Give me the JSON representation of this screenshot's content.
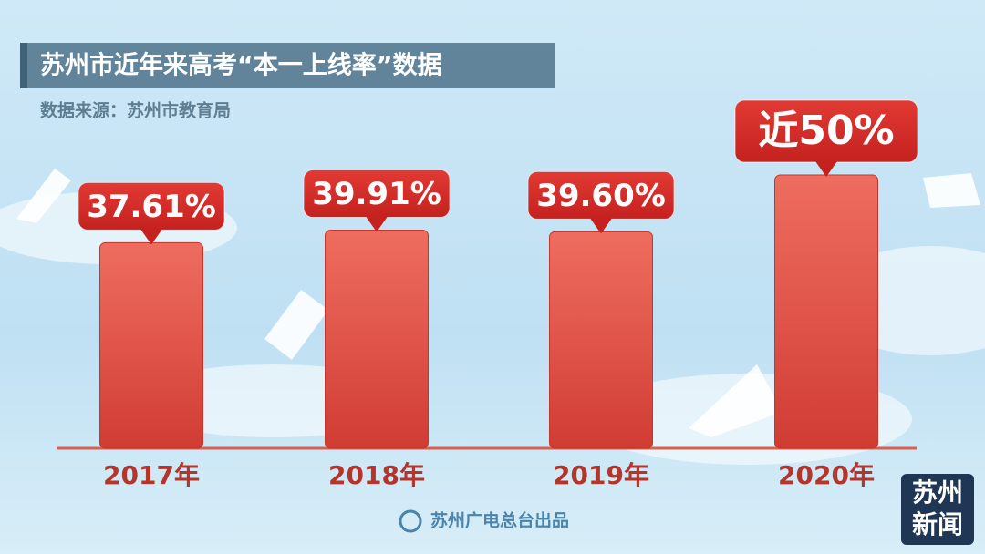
{
  "chart_data": {
    "type": "bar",
    "title": "苏州市近年来高考“本一上线率”数据",
    "subtitle": "数据来源：苏州市教育局",
    "categories": [
      "2017年",
      "2018年",
      "2019年",
      "2020年"
    ],
    "values": [
      37.61,
      39.91,
      39.6,
      50
    ],
    "value_labels": [
      "37.61%",
      "39.91%",
      "39.60%",
      "近50%"
    ],
    "color": "#dc4b3f",
    "footer": "苏州广电总台出品",
    "logo": [
      "苏州",
      "新闻"
    ]
  }
}
